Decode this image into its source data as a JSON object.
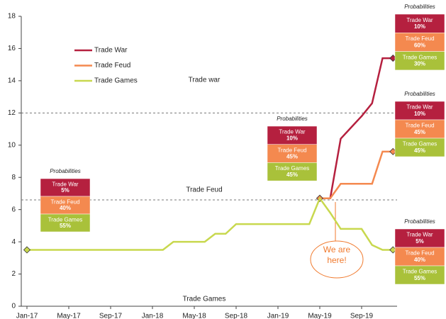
{
  "chart_data": {
    "type": "line",
    "categories": [
      "Jan-17",
      null,
      null,
      null,
      "May-17",
      null,
      null,
      null,
      "Sep-17",
      null,
      null,
      null,
      "Jan-18",
      null,
      null,
      null,
      "May-18",
      null,
      null,
      null,
      "Sep-18",
      null,
      null,
      null,
      "Jan-19",
      null,
      null,
      null,
      "May-19",
      null,
      null,
      null,
      "Sep-19",
      null,
      null,
      null
    ],
    "series": [
      {
        "name": "Trade War",
        "color": "#b5203f",
        "values": [
          null,
          null,
          null,
          null,
          null,
          null,
          null,
          null,
          null,
          null,
          null,
          null,
          null,
          null,
          null,
          null,
          null,
          null,
          null,
          null,
          null,
          null,
          null,
          null,
          null,
          null,
          null,
          null,
          6.7,
          6.7,
          10.4,
          11.1,
          11.8,
          12.6,
          15.4,
          15.4
        ]
      },
      {
        "name": "Trade Feud",
        "color": "#f4894f",
        "values": [
          null,
          null,
          null,
          null,
          null,
          null,
          null,
          null,
          null,
          null,
          null,
          null,
          null,
          null,
          null,
          null,
          null,
          null,
          null,
          null,
          null,
          null,
          null,
          null,
          null,
          null,
          null,
          null,
          6.7,
          6.7,
          7.6,
          7.6,
          7.6,
          7.6,
          9.6,
          9.6
        ]
      },
      {
        "name": "Trade Games",
        "color": "#c8d84e",
        "values": [
          3.5,
          3.5,
          3.5,
          3.5,
          3.5,
          3.5,
          3.5,
          3.5,
          3.5,
          3.5,
          3.5,
          3.5,
          3.5,
          3.5,
          4.0,
          4.0,
          4.0,
          4.0,
          4.5,
          4.5,
          5.1,
          5.1,
          5.1,
          5.1,
          5.1,
          5.1,
          5.1,
          5.1,
          6.7,
          5.8,
          4.8,
          4.8,
          4.8,
          3.8,
          3.5,
          3.5
        ]
      }
    ],
    "ylim": [
      0,
      18
    ],
    "yticks": [
      0,
      2,
      4,
      6,
      8,
      10,
      12,
      14,
      16,
      18
    ],
    "reference_lines": [
      12,
      6.6
    ],
    "annotations": [
      "Trade war",
      "Trade Feud",
      "Trade Games"
    ],
    "callout": "We are here!",
    "probability_boxes": [
      {
        "title": "Probabilities",
        "items": [
          {
            "label": "Trade War",
            "value": "5%"
          },
          {
            "label": "Trade Feud",
            "value": "40%"
          },
          {
            "label": "Trade Games",
            "value": "55%"
          }
        ]
      },
      {
        "title": "Probabilities",
        "items": [
          {
            "label": "Trade War",
            "value": "10%"
          },
          {
            "label": "Trade Feud",
            "value": "45%"
          },
          {
            "label": "Trade Games",
            "value": "45%"
          }
        ]
      },
      {
        "title": "Probabilities",
        "items": [
          {
            "label": "Trade War",
            "value": "10%"
          },
          {
            "label": "Trade Feud",
            "value": "60%"
          },
          {
            "label": "Trade Games",
            "value": "30%"
          }
        ]
      },
      {
        "title": "Probabilities",
        "items": [
          {
            "label": "Trade War",
            "value": "10%"
          },
          {
            "label": "Trade Feud",
            "value": "45%"
          },
          {
            "label": "Trade Games",
            "value": "45%"
          }
        ]
      },
      {
        "title": "Probabilities",
        "items": [
          {
            "label": "Trade War",
            "value": "5%"
          },
          {
            "label": "Trade Feud",
            "value": "40%"
          },
          {
            "label": "Trade Games",
            "value": "55%"
          }
        ]
      }
    ]
  }
}
